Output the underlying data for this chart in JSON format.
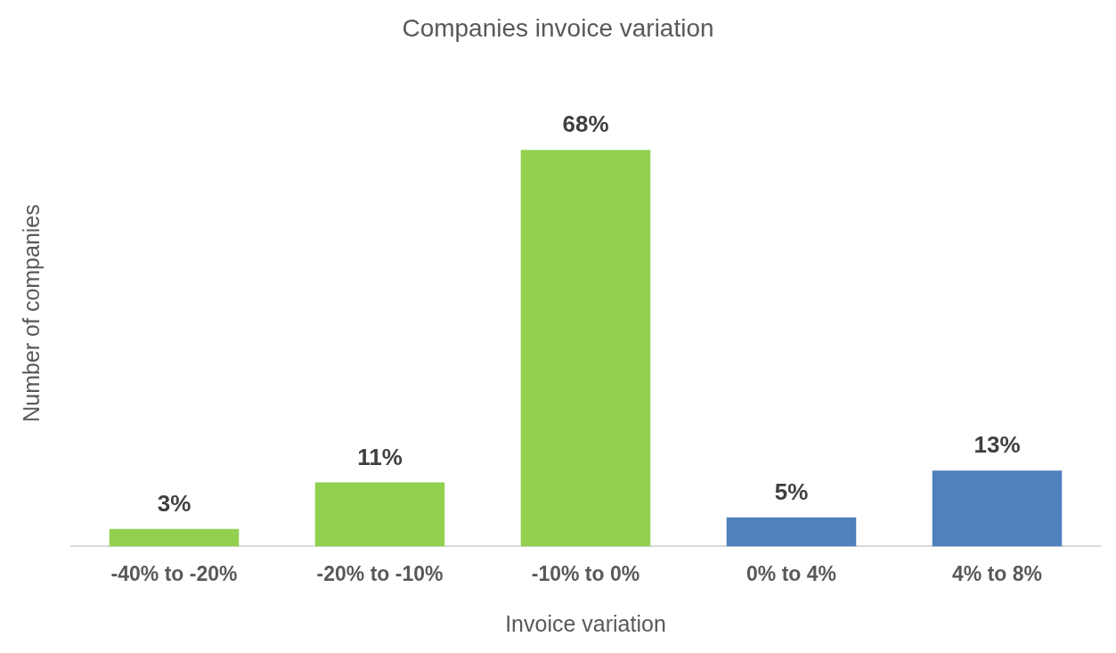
{
  "chart_data": {
    "type": "bar",
    "title": "Companies invoice variation",
    "xlabel": "Invoice variation",
    "ylabel": "Number of companies",
    "categories": [
      "-40% to -20%",
      "-20% to -10%",
      "-10% to 0%",
      "0% to 4%",
      "4% to 8%"
    ],
    "values": [
      3,
      11,
      68,
      5,
      13
    ],
    "colors": [
      "#92d050",
      "#92d050",
      "#92d050",
      "#4f81bd",
      "#4f81bd"
    ],
    "value_labels": [
      "3%",
      "11%",
      "68%",
      "5%",
      "13%"
    ],
    "grid": false,
    "legend": false
  }
}
